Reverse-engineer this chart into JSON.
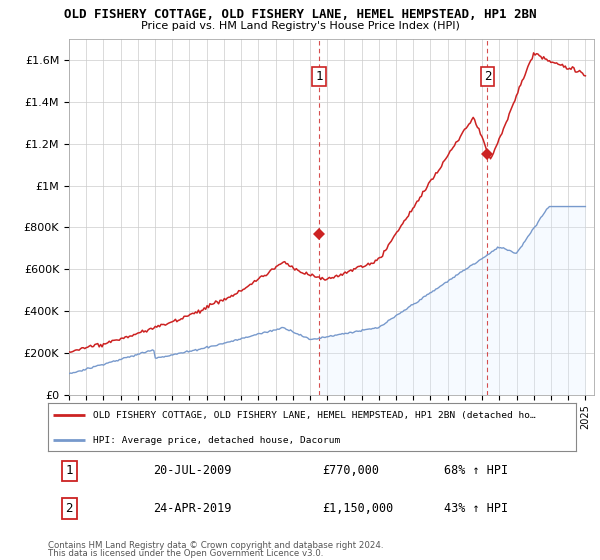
{
  "title": "OLD FISHERY COTTAGE, OLD FISHERY LANE, HEMEL HEMPSTEAD, HP1 2BN",
  "subtitle": "Price paid vs. HM Land Registry's House Price Index (HPI)",
  "ylabel_ticks": [
    "£0",
    "£200K",
    "£400K",
    "£600K",
    "£800K",
    "£1M",
    "£1.2M",
    "£1.4M",
    "£1.6M"
  ],
  "ylabel_values": [
    0,
    200000,
    400000,
    600000,
    800000,
    1000000,
    1200000,
    1400000,
    1600000
  ],
  "ylim": [
    0,
    1700000
  ],
  "xlim_start": 1995,
  "xlim_end": 2025.5,
  "sale1_date": 2009.54,
  "sale1_price": 770000,
  "sale1_label": "1",
  "sale1_display": "20-JUL-2009",
  "sale1_amount": "£770,000",
  "sale1_hpi": "68% ↑ HPI",
  "sale2_date": 2019.31,
  "sale2_price": 1150000,
  "sale2_label": "2",
  "sale2_display": "24-APR-2019",
  "sale2_amount": "£1,150,000",
  "sale2_hpi": "43% ↑ HPI",
  "red_line_color": "#cc2222",
  "blue_line_color": "#7799cc",
  "blue_fill_color": "#ddeeff",
  "grid_color": "#cccccc",
  "background_color": "#ffffff",
  "legend_line1": "OLD FISHERY COTTAGE, OLD FISHERY LANE, HEMEL HEMPSTEAD, HP1 2BN (detached ho…",
  "legend_line2": "HPI: Average price, detached house, Dacorum",
  "footnote1": "Contains HM Land Registry data © Crown copyright and database right 2024.",
  "footnote2": "This data is licensed under the Open Government Licence v3.0."
}
